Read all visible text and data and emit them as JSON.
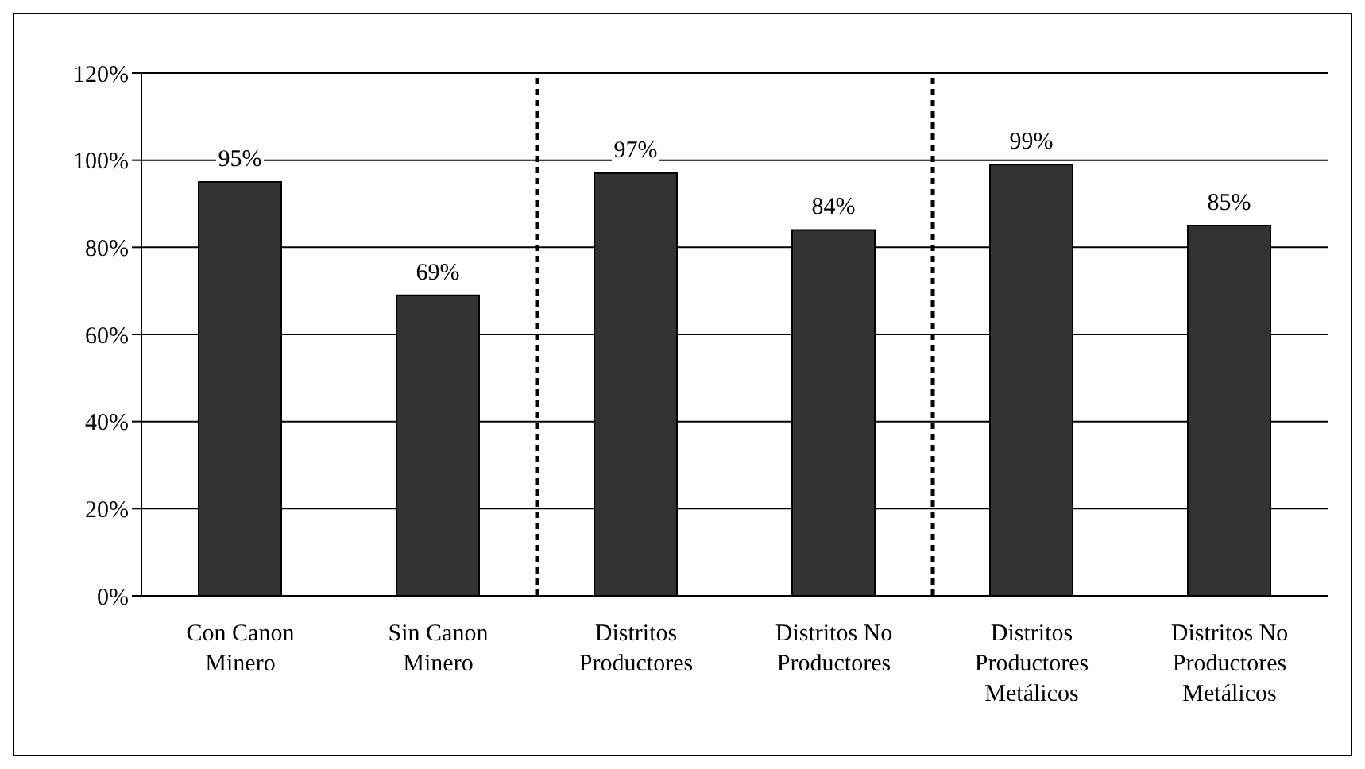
{
  "chart_data": {
    "type": "bar",
    "categories": [
      "Con Canon Minero",
      "Sin Canon Minero",
      "Distritos Productores",
      "Distritos No Productores",
      "Distritos Productores Metálicos",
      "Distritos No Productores Metálicos"
    ],
    "values": [
      95,
      69,
      97,
      84,
      99,
      85
    ],
    "value_labels": [
      "95%",
      "69%",
      "97%",
      "84%",
      "99%",
      "85%"
    ],
    "color": "#333333",
    "ylim": [
      0,
      120
    ],
    "yticks": [
      {
        "value": 0,
        "label": "0%"
      },
      {
        "value": 20,
        "label": "20%"
      },
      {
        "value": 40,
        "label": "40%"
      },
      {
        "value": 60,
        "label": "60%"
      },
      {
        "value": 80,
        "label": "80%"
      },
      {
        "value": 100,
        "label": "100%"
      },
      {
        "value": 120,
        "label": "120%"
      }
    ],
    "grid": "y",
    "legend": false
  }
}
